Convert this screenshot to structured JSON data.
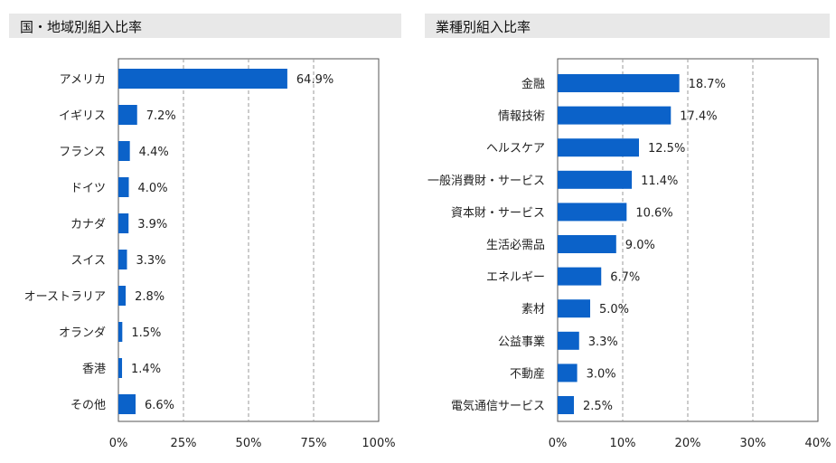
{
  "header_left": {
    "title": "国・地域別組入比率"
  },
  "header_right": {
    "title": "業種別組入比率"
  },
  "chart_data": [
    {
      "type": "bar",
      "orientation": "horizontal",
      "title": "国・地域別組入比率",
      "categories": [
        "アメリカ",
        "イギリス",
        "フランス",
        "ドイツ",
        "カナダ",
        "スイス",
        "オーストラリア",
        "オランダ",
        "香港",
        "その他"
      ],
      "values": [
        64.9,
        7.2,
        4.4,
        4.0,
        3.9,
        3.3,
        2.8,
        1.5,
        1.4,
        6.6
      ],
      "value_labels": [
        "64.9%",
        "7.2%",
        "4.4%",
        "4.0%",
        "3.9%",
        "3.3%",
        "2.8%",
        "1.5%",
        "1.4%",
        "6.6%"
      ],
      "xlim": [
        0,
        100
      ],
      "xticks": [
        0,
        25,
        50,
        75,
        100
      ],
      "xtick_labels": [
        "0%",
        "25%",
        "50%",
        "75%",
        "100%"
      ],
      "grid": "vertical dashed",
      "bar_color": "#0b62c9"
    },
    {
      "type": "bar",
      "orientation": "horizontal",
      "title": "業種別組入比率",
      "categories": [
        "金融",
        "情報技術",
        "ヘルスケア",
        "一般消費財・サービス",
        "資本財・サービス",
        "生活必需品",
        "エネルギー",
        "素材",
        "公益事業",
        "不動産",
        "電気通信サービス"
      ],
      "values": [
        18.7,
        17.4,
        12.5,
        11.4,
        10.6,
        9.0,
        6.7,
        5.0,
        3.3,
        3.0,
        2.5
      ],
      "value_labels": [
        "18.7%",
        "17.4%",
        "12.5%",
        "11.4%",
        "10.6%",
        "9.0%",
        "6.7%",
        "5.0%",
        "3.3%",
        "3.0%",
        "2.5%"
      ],
      "xlim": [
        0,
        40
      ],
      "xticks": [
        0,
        10,
        20,
        30,
        40
      ],
      "xtick_labels": [
        "0%",
        "10%",
        "20%",
        "30%",
        "40%"
      ],
      "grid": "vertical dashed",
      "bar_color": "#0b62c9"
    }
  ]
}
